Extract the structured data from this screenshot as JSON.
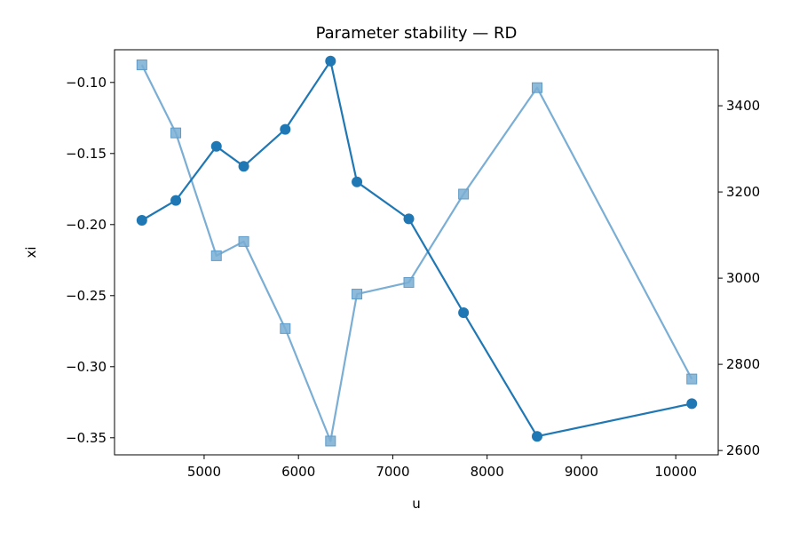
{
  "chart_data": {
    "type": "line",
    "title": "Parameter stability — RD",
    "xlabel": "u",
    "ylabel": "xi",
    "y2label": "",
    "x": [
      4340,
      4700,
      5130,
      5420,
      5860,
      6340,
      6620,
      7170,
      7750,
      8530,
      10170
    ],
    "xlim": [
      4050,
      10450
    ],
    "ylim": [
      -0.362,
      -0.077
    ],
    "y2lim": [
      2590,
      3530
    ],
    "x_ticks": [
      5000,
      6000,
      7000,
      8000,
      9000,
      10000
    ],
    "y_ticks": [
      -0.35,
      -0.3,
      -0.25,
      -0.2,
      -0.15,
      -0.1
    ],
    "y2_ticks": [
      2600,
      2800,
      3000,
      3200,
      3400
    ],
    "grid": false,
    "series": [
      {
        "axis": "left",
        "marker": "circle",
        "color": "#1f77b4",
        "values": [
          -0.197,
          -0.183,
          -0.145,
          -0.159,
          -0.133,
          -0.085,
          -0.17,
          -0.196,
          -0.262,
          -0.349,
          -0.326
        ]
      },
      {
        "axis": "right",
        "marker": "square",
        "color": "#7aaed4",
        "values": [
          3495,
          3337,
          3052,
          3085,
          2883,
          2622,
          2963,
          2990,
          3195,
          3442,
          2766
        ]
      }
    ]
  }
}
